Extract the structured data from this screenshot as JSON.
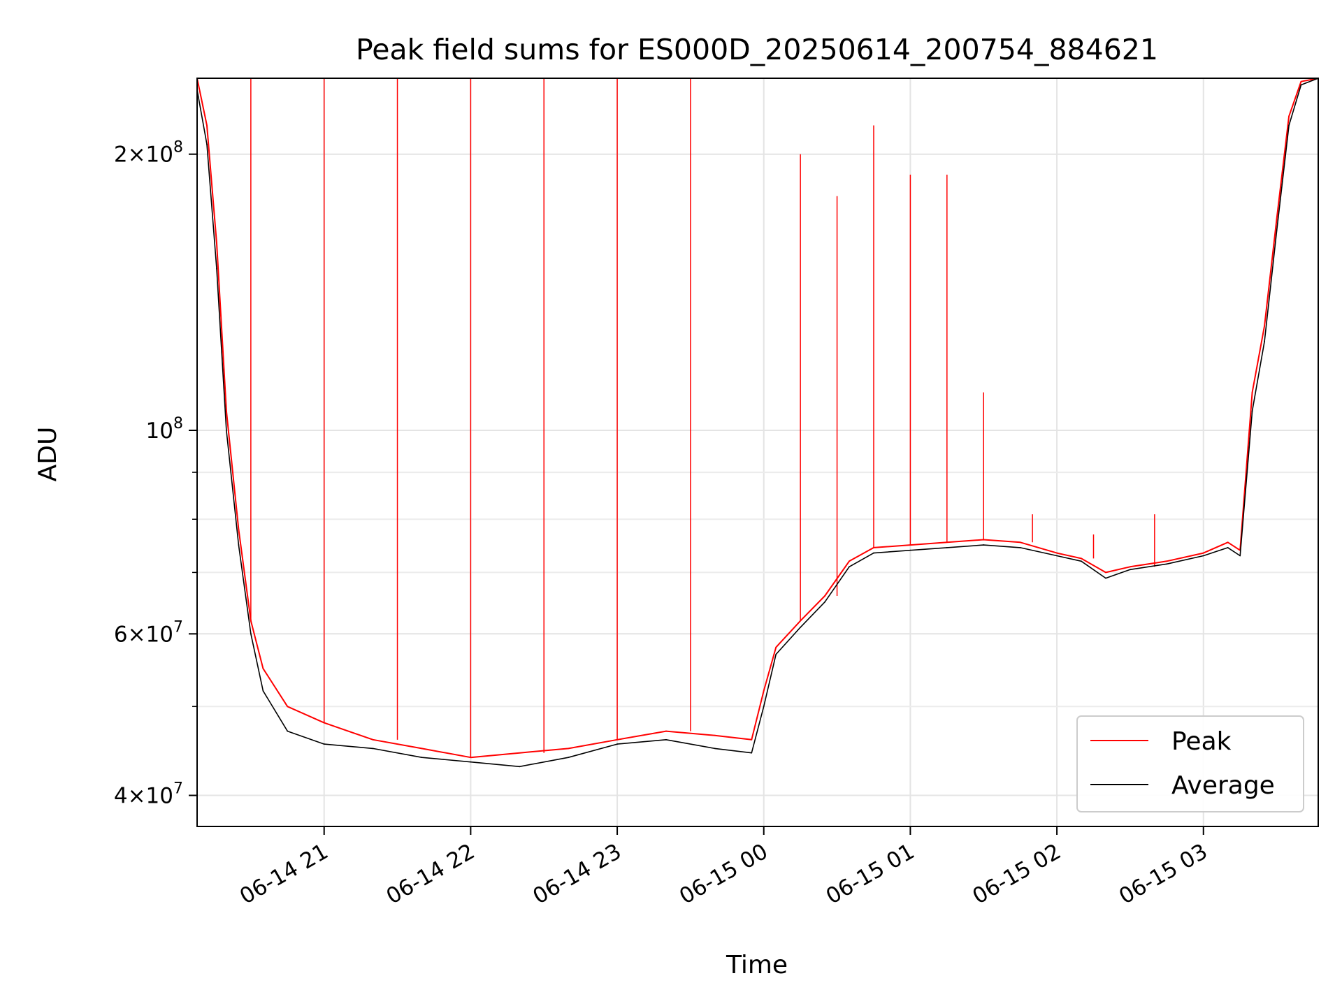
{
  "chart_data": {
    "type": "line",
    "title": "Peak field sums for ES000D_20250614_200754_884621",
    "xlabel": "Time",
    "ylabel": "ADU",
    "y_scale": "log",
    "ylim": [
      37000000,
      242000000
    ],
    "xlim": [
      "2025-06-14 20:08",
      "2025-06-15 03:47"
    ],
    "grid": true,
    "legend_position": "lower right",
    "x_ticks": [
      {
        "value": "2025-06-14 21:00",
        "label": "06-14 21"
      },
      {
        "value": "2025-06-14 22:00",
        "label": "06-14 22"
      },
      {
        "value": "2025-06-14 23:00",
        "label": "06-14 23"
      },
      {
        "value": "2025-06-15 00:00",
        "label": "06-15 00"
      },
      {
        "value": "2025-06-15 01:00",
        "label": "06-15 01"
      },
      {
        "value": "2025-06-15 02:00",
        "label": "06-15 02"
      },
      {
        "value": "2025-06-15 03:00",
        "label": "06-15 03"
      }
    ],
    "y_ticks": [
      {
        "value": 40000000,
        "base": "4",
        "exp": "7"
      },
      {
        "value": 60000000,
        "base": "6",
        "exp": "7"
      },
      {
        "value": 100000000,
        "base": "",
        "exp": "8"
      },
      {
        "value": 200000000,
        "base": "2",
        "exp": "8"
      }
    ],
    "y_minor_ticks": [
      50000000,
      70000000,
      80000000,
      90000000
    ],
    "series": [
      {
        "name": "Peak",
        "color": "#ff0000",
        "x": [
          "2025-06-14 20:08",
          "2025-06-14 20:12",
          "2025-06-14 20:16",
          "2025-06-14 20:20",
          "2025-06-14 20:25",
          "2025-06-14 20:30",
          "2025-06-14 20:35",
          "2025-06-14 20:45",
          "2025-06-14 21:00",
          "2025-06-14 21:20",
          "2025-06-14 21:40",
          "2025-06-14 22:00",
          "2025-06-14 22:20",
          "2025-06-14 22:40",
          "2025-06-14 23:00",
          "2025-06-14 23:20",
          "2025-06-14 23:40",
          "2025-06-14 23:55",
          "2025-06-15 00:00",
          "2025-06-15 00:05",
          "2025-06-15 00:15",
          "2025-06-15 00:25",
          "2025-06-15 00:35",
          "2025-06-15 00:45",
          "2025-06-15 01:00",
          "2025-06-15 01:15",
          "2025-06-15 01:30",
          "2025-06-15 01:45",
          "2025-06-15 02:00",
          "2025-06-15 02:10",
          "2025-06-15 02:20",
          "2025-06-15 02:30",
          "2025-06-15 02:45",
          "2025-06-15 03:00",
          "2025-06-15 03:10",
          "2025-06-15 03:15",
          "2025-06-15 03:20",
          "2025-06-15 03:25",
          "2025-06-15 03:30",
          "2025-06-15 03:35",
          "2025-06-15 03:40",
          "2025-06-15 03:47"
        ],
        "y": [
          242000000,
          215000000,
          160000000,
          105000000,
          78000000,
          62000000,
          55000000,
          50000000,
          48000000,
          46000000,
          45000000,
          44000000,
          44500000,
          45000000,
          46000000,
          47000000,
          46500000,
          46000000,
          52000000,
          58000000,
          62000000,
          66000000,
          72000000,
          74500000,
          75000000,
          75500000,
          76000000,
          75500000,
          73500000,
          72500000,
          70000000,
          71000000,
          72000000,
          73500000,
          75500000,
          74000000,
          110000000,
          130000000,
          170000000,
          220000000,
          240000000,
          242000000
        ],
        "spike_samples": {
          "x": [
            "2025-06-14 20:30",
            "2025-06-14 21:00",
            "2025-06-14 21:30",
            "2025-06-14 22:00",
            "2025-06-14 22:30",
            "2025-06-14 23:00",
            "2025-06-14 23:30",
            "2025-06-15 00:15",
            "2025-06-15 00:30",
            "2025-06-15 00:45",
            "2025-06-15 01:00",
            "2025-06-15 01:15",
            "2025-06-15 01:30",
            "2025-06-15 01:50",
            "2025-06-15 02:15",
            "2025-06-15 02:40"
          ],
          "y": [
            242000000,
            242000000,
            242000000,
            242000000,
            242000000,
            242000000,
            242000000,
            200000000,
            180000000,
            215000000,
            190000000,
            190000000,
            110000000,
            81000000,
            77000000,
            81000000
          ]
        }
      },
      {
        "name": "Average",
        "color": "#000000",
        "x": [
          "2025-06-14 20:08",
          "2025-06-14 20:12",
          "2025-06-14 20:16",
          "2025-06-14 20:20",
          "2025-06-14 20:25",
          "2025-06-14 20:30",
          "2025-06-14 20:35",
          "2025-06-14 20:45",
          "2025-06-14 21:00",
          "2025-06-14 21:20",
          "2025-06-14 21:40",
          "2025-06-14 22:00",
          "2025-06-14 22:20",
          "2025-06-14 22:40",
          "2025-06-14 23:00",
          "2025-06-14 23:20",
          "2025-06-14 23:40",
          "2025-06-14 23:55",
          "2025-06-15 00:00",
          "2025-06-15 00:05",
          "2025-06-15 00:15",
          "2025-06-15 00:25",
          "2025-06-15 00:35",
          "2025-06-15 00:45",
          "2025-06-15 01:00",
          "2025-06-15 01:15",
          "2025-06-15 01:30",
          "2025-06-15 01:45",
          "2025-06-15 02:00",
          "2025-06-15 02:10",
          "2025-06-15 02:20",
          "2025-06-15 02:30",
          "2025-06-15 02:45",
          "2025-06-15 03:00",
          "2025-06-15 03:10",
          "2025-06-15 03:15",
          "2025-06-15 03:20",
          "2025-06-15 03:25",
          "2025-06-15 03:30",
          "2025-06-15 03:35",
          "2025-06-15 03:40",
          "2025-06-15 03:47"
        ],
        "y": [
          235000000,
          205000000,
          150000000,
          100000000,
          75000000,
          60000000,
          52000000,
          47000000,
          45500000,
          45000000,
          44000000,
          43500000,
          43000000,
          44000000,
          45500000,
          46000000,
          45000000,
          44500000,
          50000000,
          57000000,
          61000000,
          65000000,
          71000000,
          73500000,
          74000000,
          74500000,
          75000000,
          74500000,
          73000000,
          72000000,
          69000000,
          70500000,
          71500000,
          73000000,
          74500000,
          73000000,
          105000000,
          125000000,
          165000000,
          215000000,
          238000000,
          242000000
        ]
      }
    ]
  }
}
